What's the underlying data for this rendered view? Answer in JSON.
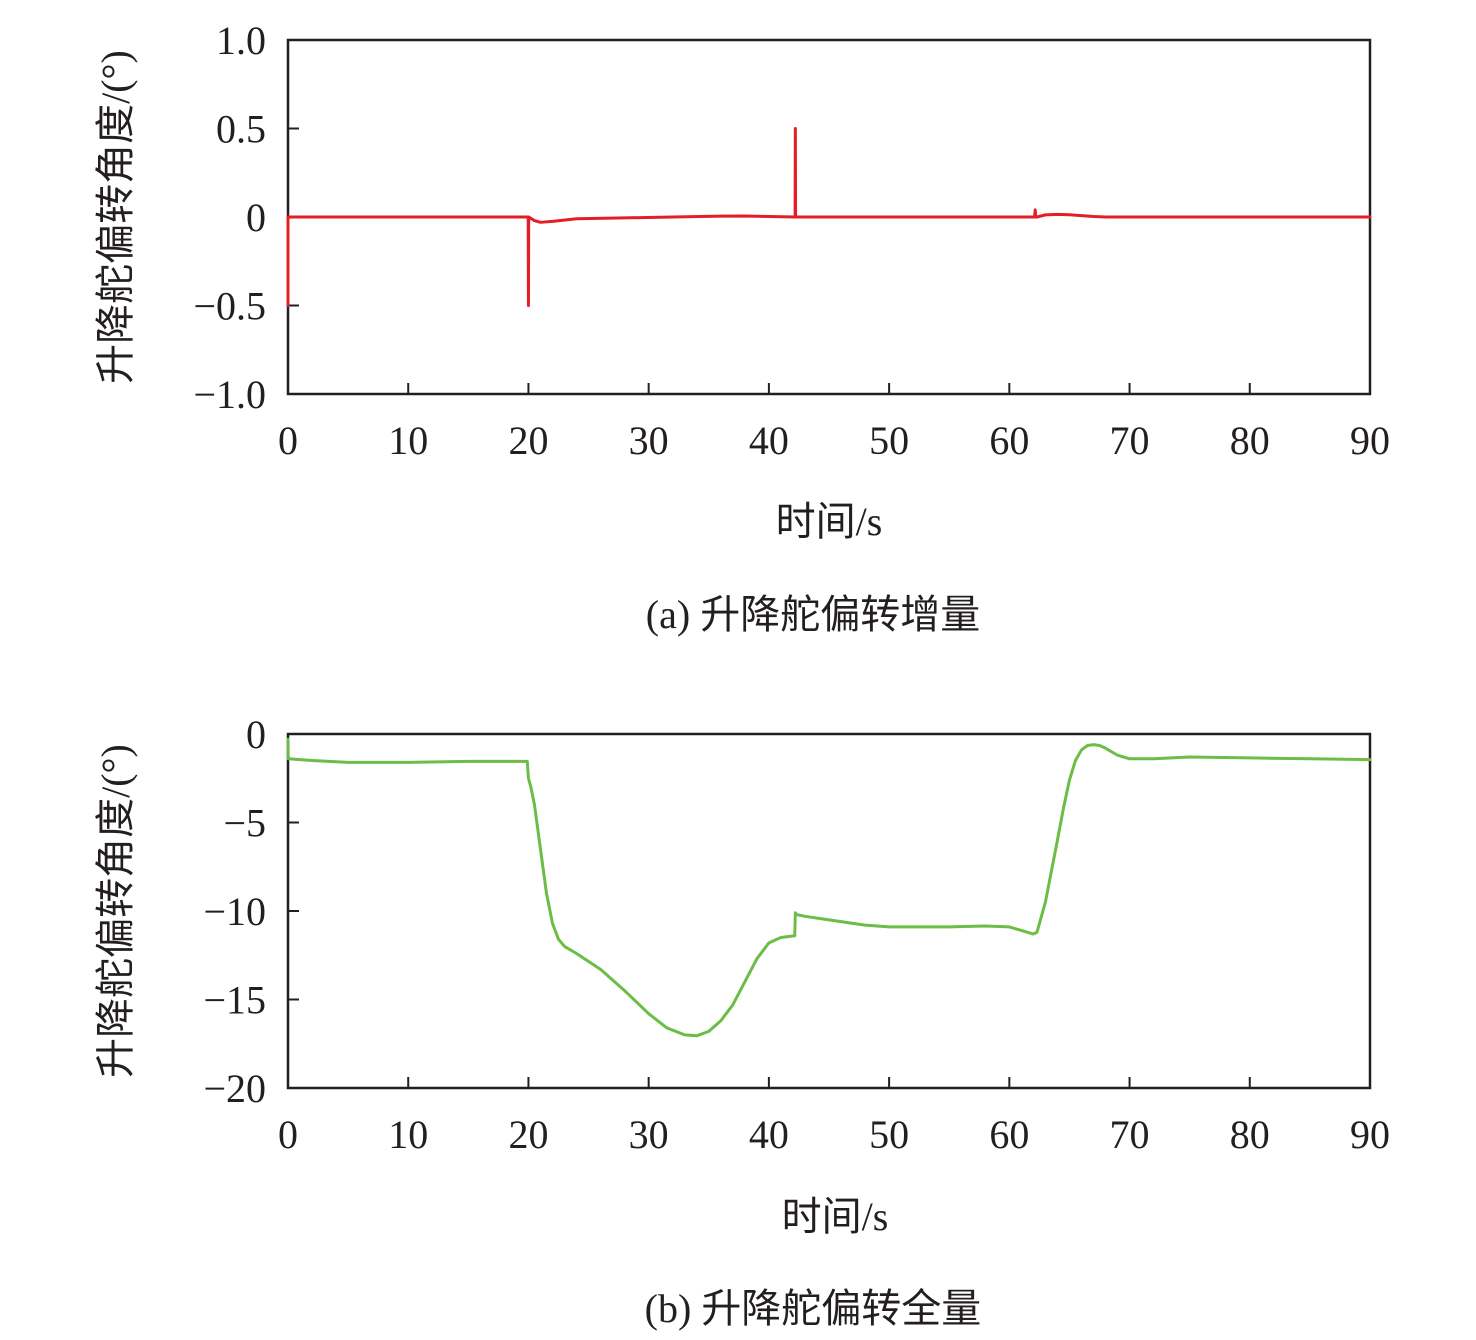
{
  "chart_data": [
    {
      "type": "line",
      "xlabel": "时间/s",
      "ylabel": "升降舵偏转角度/(°)",
      "caption": "(a) 升降舵偏转增量",
      "xlim": [
        0,
        90
      ],
      "ylim": [
        -1.0,
        1.0
      ],
      "xticks": [
        0,
        10,
        20,
        30,
        40,
        50,
        60,
        70,
        80,
        90
      ],
      "xtick_labels": [
        "0",
        "10",
        "20",
        "30",
        "40",
        "50",
        "60",
        "70",
        "80",
        "90"
      ],
      "yticks": [
        1.0,
        0.5,
        0,
        -0.5,
        -1.0
      ],
      "ytick_labels": [
        "1.0",
        "0.5",
        "0",
        "−0.5",
        "−1.0"
      ],
      "grid": false,
      "series": [
        {
          "color": "#e31e24",
          "x": [
            0,
            0,
            0.05,
            5,
            10,
            15,
            19.98,
            20,
            20.02,
            20.5,
            21,
            22,
            24,
            28,
            32,
            36,
            38,
            40,
            42.18,
            42.2,
            42.22,
            45,
            50,
            55,
            60,
            62.1,
            62.15,
            62.2,
            62.3,
            63,
            64,
            65,
            66,
            67,
            68,
            70,
            75,
            80,
            85,
            90
          ],
          "y": [
            -0.5,
            0,
            0,
            0,
            0,
            0,
            0,
            -0.5,
            0,
            -0.02,
            -0.03,
            -0.025,
            -0.01,
            -0.005,
            0,
            0.005,
            0.006,
            0.003,
            0,
            0.5,
            0,
            0,
            0,
            0,
            0,
            0,
            0.04,
            0,
            0,
            0.012,
            0.015,
            0.013,
            0.008,
            0.003,
            0,
            0,
            0,
            0,
            0,
            0
          ]
        }
      ]
    },
    {
      "type": "line",
      "xlabel": "时间/s",
      "ylabel": "升降舵偏转角度/(°)",
      "caption": "(b) 升降舵偏转全量",
      "xlim": [
        0,
        90
      ],
      "ylim": [
        -20,
        0
      ],
      "xticks": [
        0,
        10,
        20,
        30,
        40,
        50,
        60,
        70,
        80,
        90
      ],
      "xtick_labels": [
        "0",
        "10",
        "20",
        "30",
        "40",
        "50",
        "60",
        "70",
        "80",
        "90"
      ],
      "yticks": [
        0,
        -5,
        -10,
        -15,
        -20
      ],
      "ytick_labels": [
        "0",
        "−5",
        "−10",
        "−15",
        "−20"
      ],
      "grid": false,
      "series": [
        {
          "color": "#6cbd45",
          "x": [
            0,
            0.02,
            2,
            5,
            10,
            15,
            19.9,
            20,
            20.2,
            20.5,
            21,
            21.5,
            22,
            22.5,
            23,
            24,
            26,
            28,
            30,
            31.5,
            33,
            34,
            35,
            36,
            37,
            38,
            39,
            40,
            41,
            42.15,
            42.2,
            42.3,
            43,
            45,
            48,
            50,
            55,
            58,
            60,
            61,
            62,
            62.3,
            63,
            64,
            64.5,
            65,
            65.5,
            66,
            66.5,
            67,
            67.5,
            68,
            69,
            70,
            72,
            75,
            80,
            85,
            90
          ],
          "y": [
            -0.3,
            -1.4,
            -1.5,
            -1.6,
            -1.6,
            -1.55,
            -1.55,
            -2.5,
            -3.0,
            -4.0,
            -6.5,
            -9.0,
            -10.7,
            -11.6,
            -12.0,
            -12.4,
            -13.3,
            -14.5,
            -15.8,
            -16.6,
            -17.0,
            -17.05,
            -16.8,
            -16.2,
            -15.3,
            -14.0,
            -12.7,
            -11.8,
            -11.5,
            -11.4,
            -10.1,
            -10.2,
            -10.3,
            -10.5,
            -10.8,
            -10.9,
            -10.9,
            -10.85,
            -10.9,
            -11.1,
            -11.3,
            -11.2,
            -9.5,
            -6.0,
            -4.2,
            -2.6,
            -1.5,
            -0.9,
            -0.65,
            -0.6,
            -0.65,
            -0.8,
            -1.2,
            -1.4,
            -1.4,
            -1.3,
            -1.35,
            -1.4,
            -1.45
          ]
        }
      ]
    }
  ]
}
